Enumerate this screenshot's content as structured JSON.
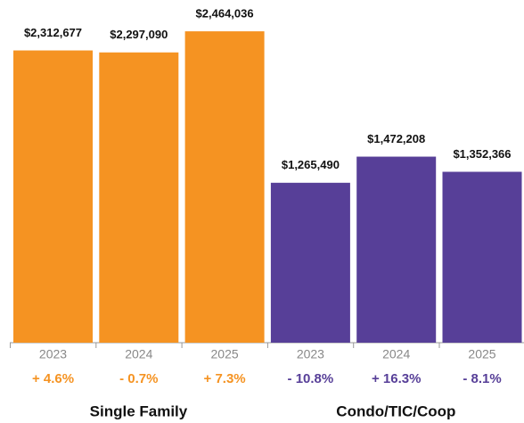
{
  "chart_data": {
    "type": "bar",
    "ylim": [
      0,
      2500000
    ],
    "series": [
      {
        "name": "Single Family",
        "color": "#f59322",
        "categories": [
          "2023",
          "2024",
          "2025"
        ],
        "values": [
          2312677,
          2297090,
          2464036
        ],
        "value_labels": [
          "$2,312,677",
          "$2,297,090",
          "$2,464,036"
        ],
        "changes": [
          "+ 4.6%",
          "- 0.7%",
          "+ 7.3%"
        ]
      },
      {
        "name": "Condo/TIC/Coop",
        "color": "#573f98",
        "categories": [
          "2023",
          "2024",
          "2025"
        ],
        "values": [
          1265490,
          1472208,
          1352366
        ],
        "value_labels": [
          "$1,265,490",
          "$1,472,208",
          "$1,352,366"
        ],
        "changes": [
          "- 10.8%",
          "+ 16.3%",
          "- 8.1%"
        ]
      }
    ]
  }
}
